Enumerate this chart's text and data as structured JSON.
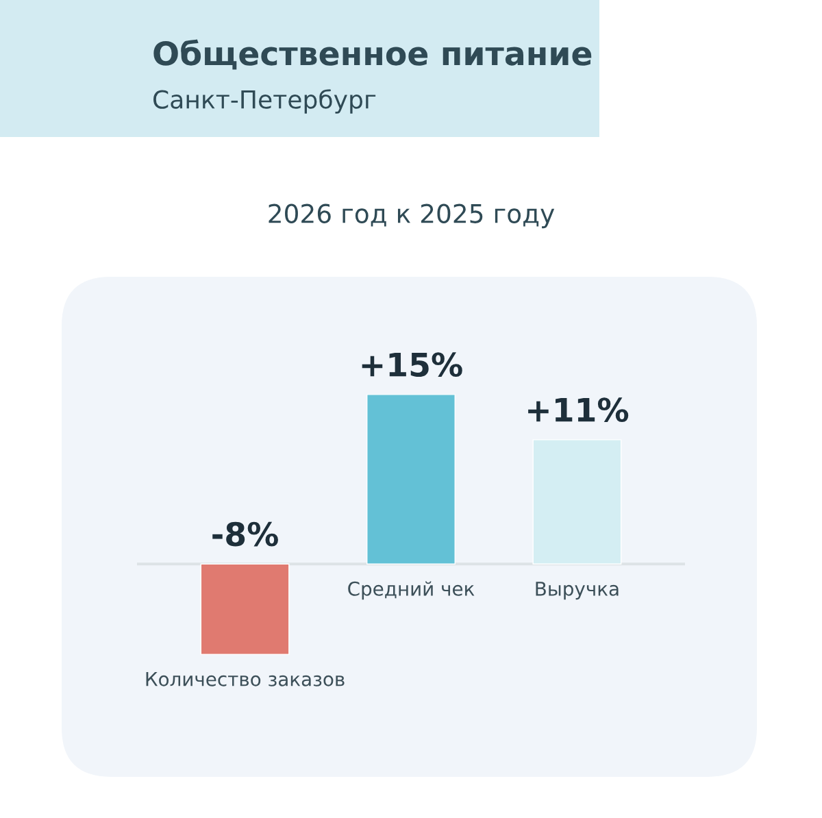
{
  "chart_data": {
    "type": "bar",
    "title": "Общественное питание",
    "subtitle": "Санкт-Петербург",
    "annotations": [
      "2026 год к 2025 году"
    ],
    "categories": [
      "Количество заказов",
      "Средний чек",
      "Выручка"
    ],
    "values": [
      -8,
      15,
      11
    ],
    "colors": [
      "#e07a70",
      "#63c1d6",
      "#d4eef3"
    ],
    "value_labels": [
      "-8%",
      "+15%",
      "+11%"
    ]
  }
}
